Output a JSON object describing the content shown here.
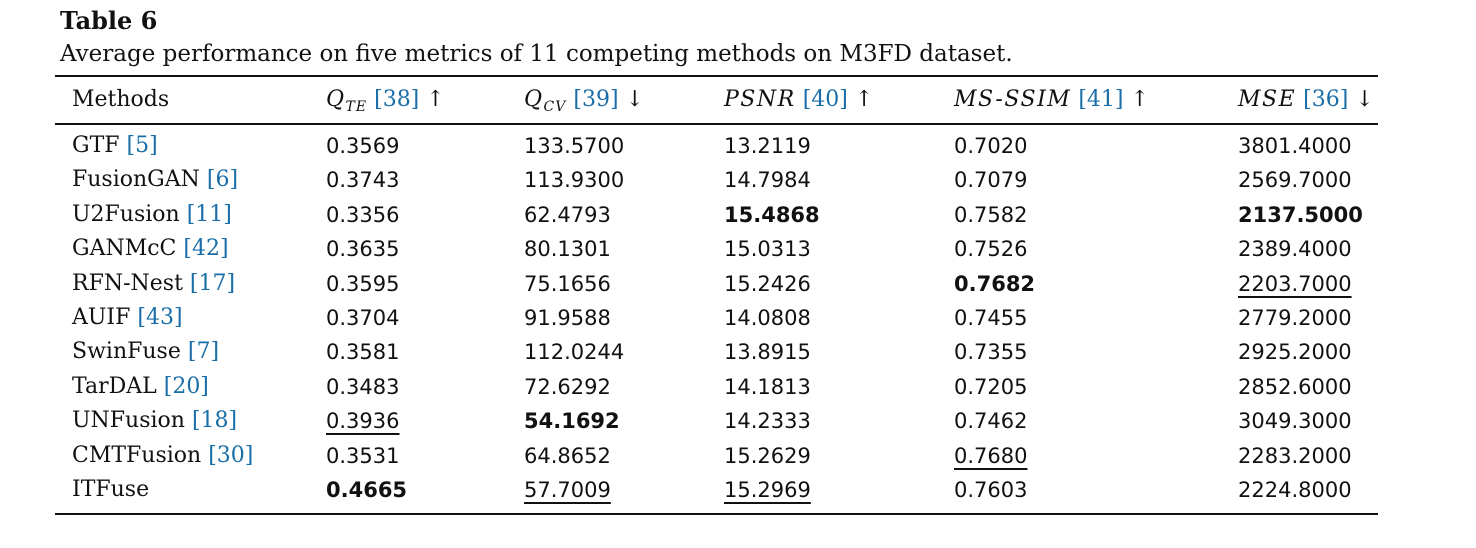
{
  "caption": {
    "label": "Table 6",
    "text": "Average performance on five metrics of 11 competing methods on M3FD dataset."
  },
  "headers": [
    {
      "main": "Methods",
      "sub": "",
      "cite": "",
      "arrow": ""
    },
    {
      "main": "Q",
      "sub": "TE",
      "cite": "[38]",
      "arrow": "↑"
    },
    {
      "main": "Q",
      "sub": "CV",
      "cite": "[39]",
      "arrow": "↓"
    },
    {
      "main": "PSNR",
      "sub": "",
      "cite": "[40]",
      "arrow": "↑"
    },
    {
      "main": "MS-SSIM",
      "sub": "",
      "cite": "[41]",
      "arrow": "↑"
    },
    {
      "main": "MSE",
      "sub": "",
      "cite": "[36]",
      "arrow": "↓"
    }
  ],
  "rows": [
    {
      "method": "GTF",
      "cite": "[5]",
      "values": [
        "0.3569",
        "133.5700",
        "13.2119",
        "0.7020",
        "3801.4000"
      ],
      "bold": [],
      "underline": []
    },
    {
      "method": "FusionGAN",
      "cite": "[6]",
      "values": [
        "0.3743",
        "113.9300",
        "14.7984",
        "0.7079",
        "2569.7000"
      ],
      "bold": [],
      "underline": []
    },
    {
      "method": "U2Fusion",
      "cite": "[11]",
      "values": [
        "0.3356",
        "62.4793",
        "15.4868",
        "0.7582",
        "2137.5000"
      ],
      "bold": [
        2,
        4
      ],
      "underline": []
    },
    {
      "method": "GANMcC",
      "cite": "[42]",
      "values": [
        "0.3635",
        "80.1301",
        "15.0313",
        "0.7526",
        "2389.4000"
      ],
      "bold": [],
      "underline": []
    },
    {
      "method": "RFN-Nest",
      "cite": "[17]",
      "values": [
        "0.3595",
        "75.1656",
        "15.2426",
        "0.7682",
        "2203.7000"
      ],
      "bold": [
        3
      ],
      "underline": [
        4
      ]
    },
    {
      "method": "AUIF",
      "cite": "[43]",
      "values": [
        "0.3704",
        "91.9588",
        "14.0808",
        "0.7455",
        "2779.2000"
      ],
      "bold": [],
      "underline": []
    },
    {
      "method": "SwinFuse",
      "cite": "[7]",
      "values": [
        "0.3581",
        "112.0244",
        "13.8915",
        "0.7355",
        "2925.2000"
      ],
      "bold": [],
      "underline": []
    },
    {
      "method": "TarDAL",
      "cite": "[20]",
      "values": [
        "0.3483",
        "72.6292",
        "14.1813",
        "0.7205",
        "2852.6000"
      ],
      "bold": [],
      "underline": []
    },
    {
      "method": "UNFusion",
      "cite": "[18]",
      "values": [
        "0.3936",
        "54.1692",
        "14.2333",
        "0.7462",
        "3049.3000"
      ],
      "bold": [
        1
      ],
      "underline": [
        0
      ]
    },
    {
      "method": "CMTFusion",
      "cite": "[30]",
      "values": [
        "0.3531",
        "64.8652",
        "15.2629",
        "0.7680",
        "2283.2000"
      ],
      "bold": [],
      "underline": [
        3
      ]
    },
    {
      "method": "ITFuse",
      "cite": "",
      "values": [
        "0.4665",
        "57.7009",
        "15.2969",
        "0.7603",
        "2224.8000"
      ],
      "bold": [
        0
      ],
      "underline": [
        1,
        2
      ]
    }
  ],
  "colors": {
    "citation": "#1a6ea8",
    "text": "#111111"
  }
}
